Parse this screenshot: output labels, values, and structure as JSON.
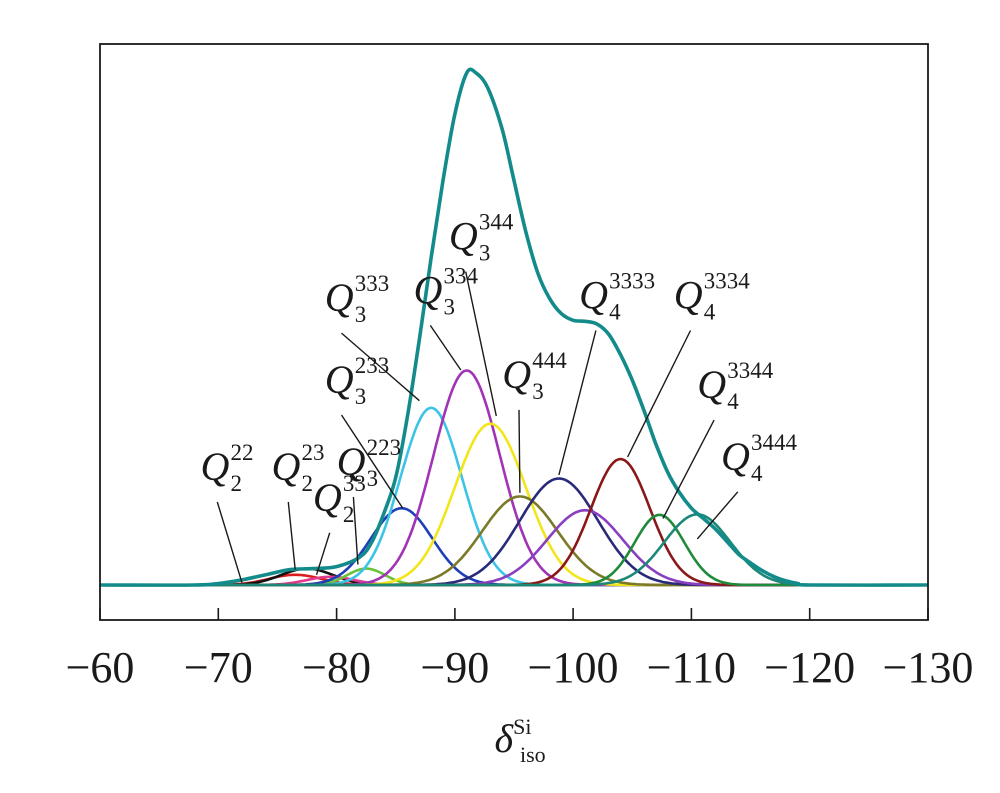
{
  "chart_data": {
    "type": "line",
    "xlabel": {
      "symbol": "δ",
      "superscript": "Si",
      "subscript": "iso"
    },
    "ylabel": "",
    "xlim": [
      -60,
      -130
    ],
    "x_ticks": [
      -60,
      -70,
      -80,
      -90,
      -100,
      -110,
      -120,
      -130
    ],
    "x_tick_labels": [
      "−60",
      "−70",
      "−80",
      "−90",
      "−100",
      "−110",
      "−120",
      "−130"
    ],
    "ylim": [
      0,
      100
    ],
    "grid": false,
    "series": [
      {
        "id": "Q2-22",
        "label": {
          "main": "Q",
          "sup": "22",
          "sub": "2"
        },
        "color": "#d81e1e",
        "center": -76.5,
        "width": 2.2,
        "height": 2.0
      },
      {
        "id": "Q2-23",
        "label": {
          "main": "Q",
          "sup": "23",
          "sub": "2"
        },
        "color": "#111111",
        "center": -77.5,
        "width": 2.2,
        "height": 3.2
      },
      {
        "id": "Q2-33",
        "label": {
          "main": "Q",
          "sup": "33",
          "sub": "2"
        },
        "color": "#e23a8c",
        "center": -79.5,
        "width": 2.0,
        "height": 1.6
      },
      {
        "id": "Q3-223",
        "label": {
          "main": "Q",
          "sup": "223",
          "sub": "3"
        },
        "color": "#6ac23a",
        "center": -82.5,
        "width": 1.6,
        "height": 3.2
      },
      {
        "id": "Q3-233",
        "label": {
          "main": "Q",
          "sup": "233",
          "sub": "3"
        },
        "color": "#1f3fb8",
        "center": -85.5,
        "width": 2.6,
        "height": 15.0
      },
      {
        "id": "Q3-333",
        "label": {
          "main": "Q",
          "sup": "333",
          "sub": "3"
        },
        "color": "#3cc4e6",
        "center": -88.0,
        "width": 2.6,
        "height": 34.6
      },
      {
        "id": "Q3-334",
        "label": {
          "main": "Q",
          "sup": "334",
          "sub": "3"
        },
        "color": "#a034b4",
        "center": -91.0,
        "width": 2.8,
        "height": 41.9
      },
      {
        "id": "Q3-344",
        "label": {
          "main": "Q",
          "sup": "344",
          "sub": "3"
        },
        "color": "#f2e61a",
        "center": -93.0,
        "width": 3.0,
        "height": 31.5
      },
      {
        "id": "Q3-444",
        "label": {
          "main": "Q",
          "sup": "444",
          "sub": "3"
        },
        "color": "#7a7a28",
        "center": -95.5,
        "width": 3.2,
        "height": 17.3
      },
      {
        "id": "Q4-3333",
        "label": {
          "main": "Q",
          "sup": "3333",
          "sub": "4"
        },
        "color": "#2a2a7a",
        "center": -98.8,
        "width": 3.3,
        "height": 20.8
      },
      {
        "id": "Q4-3334",
        "label": {
          "main": "Q",
          "sup": "3334",
          "sub": "4"
        },
        "color": "#8a3ec0",
        "center": -101.0,
        "width": 3.2,
        "height": 14.6
      },
      {
        "id": "Q4-3344",
        "label": {
          "main": "Q",
          "sup": "3344",
          "sub": "4"
        },
        "color": "#8a1818",
        "center": -104.0,
        "width": 2.5,
        "height": 24.6
      },
      {
        "id": "Q4-3444",
        "label": {
          "main": "Q",
          "sup": "3444",
          "sub": "4"
        },
        "color": "#1e8a3a",
        "center": -107.3,
        "width": 2.1,
        "height": 13.7
      },
      {
        "id": "Q4-4444",
        "label": null,
        "color": "#1c8878",
        "center": -110.5,
        "width": 2.8,
        "height": 13.8
      },
      {
        "id": "total",
        "label": null,
        "color": "#148b8b",
        "kind": "envelope",
        "points": [
          [
            -60,
            0
          ],
          [
            -68,
            0
          ],
          [
            -70,
            0.3
          ],
          [
            -72,
            1.0
          ],
          [
            -74,
            2.0
          ],
          [
            -76,
            3.0
          ],
          [
            -78,
            3.2
          ],
          [
            -80,
            3.6
          ],
          [
            -82,
            5.5
          ],
          [
            -83,
            8.5
          ],
          [
            -84,
            14
          ],
          [
            -85,
            21
          ],
          [
            -86,
            33
          ],
          [
            -87,
            48
          ],
          [
            -88,
            64
          ],
          [
            -89,
            79
          ],
          [
            -90,
            92
          ],
          [
            -91,
            100
          ],
          [
            -91.8,
            100
          ],
          [
            -92.8,
            97
          ],
          [
            -94,
            89
          ],
          [
            -95,
            79
          ],
          [
            -96,
            69
          ],
          [
            -97,
            61
          ],
          [
            -98,
            56
          ],
          [
            -99,
            53
          ],
          [
            -100,
            51.7
          ],
          [
            -101,
            51.5
          ],
          [
            -102,
            51
          ],
          [
            -103,
            49
          ],
          [
            -104,
            45
          ],
          [
            -105,
            40
          ],
          [
            -106,
            34
          ],
          [
            -107,
            27.5
          ],
          [
            -108,
            22
          ],
          [
            -109,
            18
          ],
          [
            -110,
            15
          ],
          [
            -111,
            13
          ],
          [
            -112,
            11
          ],
          [
            -113,
            8.5
          ],
          [
            -114,
            6
          ],
          [
            -115,
            4.3
          ],
          [
            -116,
            2.8
          ],
          [
            -117,
            1.6
          ],
          [
            -118,
            0.8
          ],
          [
            -119,
            0.3
          ],
          [
            -120,
            0
          ],
          [
            -130,
            0
          ]
        ]
      }
    ],
    "annotations": [
      {
        "series": "Q2-22",
        "label_x": -68.5,
        "label_y": 20.5,
        "arrow_x": -72,
        "arrow_y": 0.5
      },
      {
        "series": "Q2-23",
        "label_x": -74.5,
        "label_y": 20.5,
        "arrow_x": -76.5,
        "arrow_y": 3.0
      },
      {
        "series": "Q2-33",
        "label_x": -78.0,
        "label_y": 14.5,
        "arrow_x": -78.3,
        "arrow_y": 2.0
      },
      {
        "series": "Q3-223",
        "label_x": -80.0,
        "label_y": 21.5,
        "arrow_x": -81.8,
        "arrow_y": 4.0
      },
      {
        "series": "Q3-233",
        "label_x": -79.0,
        "label_y": 37.5,
        "arrow_x": -85.6,
        "arrow_y": 15.0
      },
      {
        "series": "Q3-333",
        "label_x": -79.0,
        "label_y": 53.5,
        "arrow_x": -87.0,
        "arrow_y": 36.0
      },
      {
        "series": "Q3-334",
        "label_x": -86.5,
        "label_y": 55.0,
        "arrow_x": -90.5,
        "arrow_y": 42.0
      },
      {
        "series": "Q3-344",
        "label_x": -89.5,
        "label_y": 65.5,
        "arrow_x": -93.5,
        "arrow_y": 33.0
      },
      {
        "series": "Q3-444",
        "label_x": -94.0,
        "label_y": 38.5,
        "arrow_x": -95.5,
        "arrow_y": 18.0
      },
      {
        "series": "Q4-3333",
        "label_x": -100.5,
        "label_y": 54.0,
        "arrow_x": -98.8,
        "arrow_y": 21.5
      },
      {
        "series": "Q4-3334",
        "label_x": -108.5,
        "label_y": 54.0,
        "arrow_x": -104.6,
        "arrow_y": 25.0
      },
      {
        "series": "Q4-3344",
        "label_x": -110.5,
        "label_y": 36.5,
        "arrow_x": -107.6,
        "arrow_y": 13.0
      },
      {
        "series": "Q4-3444",
        "label_x": -112.5,
        "label_y": 22.5,
        "arrow_x": -110.5,
        "arrow_y": 9.0
      }
    ]
  }
}
